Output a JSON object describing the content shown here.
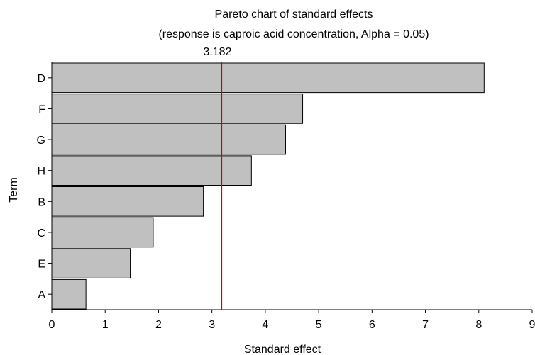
{
  "chart_data": {
    "type": "bar",
    "orientation": "horizontal",
    "title": "Pareto chart of standard effects",
    "subtitle": "(response is caproic acid concentration, Alpha = 0.05)",
    "xlabel": "Standard effect",
    "ylabel": "Term",
    "categories": [
      "D",
      "F",
      "G",
      "H",
      "B",
      "C",
      "E",
      "A"
    ],
    "values": [
      8.1,
      4.7,
      4.38,
      3.74,
      2.84,
      1.9,
      1.47,
      0.64
    ],
    "xlim": [
      0,
      9
    ],
    "xticks": [
      "0",
      "1",
      "2",
      "3",
      "4",
      "5",
      "6",
      "7",
      "8",
      "9"
    ],
    "reference_line": {
      "value": 3.182,
      "label": "3.182",
      "color": "#cc0000"
    },
    "bar_color": "#c0c0c0",
    "bar_edge_color": "#000000",
    "grid": false
  }
}
